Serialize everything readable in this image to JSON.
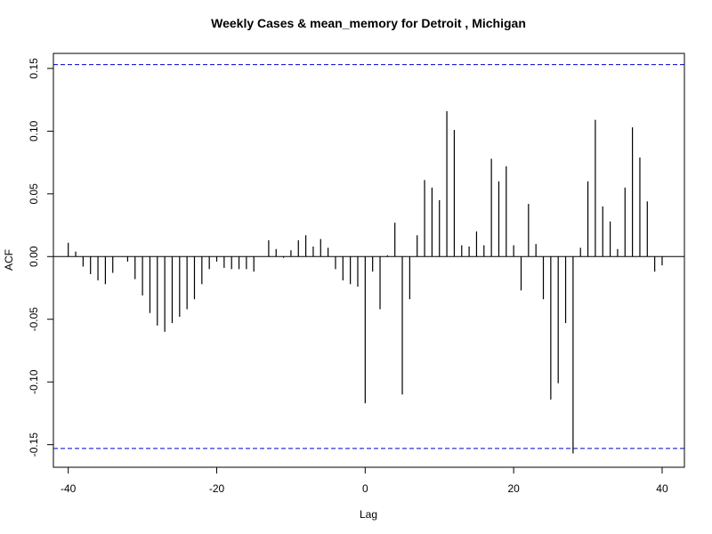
{
  "chart_data": {
    "type": "bar",
    "title": "Weekly Cases & mean_memory for Detroit , Michigan",
    "xlabel": "Lag",
    "ylabel": "ACF",
    "xlim": [
      -42,
      43
    ],
    "ylim": [
      -0.168,
      0.162
    ],
    "x_ticks": [
      -40,
      -20,
      0,
      20,
      40
    ],
    "y_ticks": [
      -0.15,
      -0.1,
      -0.05,
      0.0,
      0.05,
      0.1,
      0.15
    ],
    "y_tick_labels": [
      "-0.15",
      "-0.10",
      "-0.05",
      "0.00",
      "0.05",
      "0.10",
      "0.15"
    ],
    "confidence_limit": 0.153,
    "zero_line": true,
    "colors": {
      "bars": "#000000",
      "confidence": "#0000cc",
      "axes": "#000000"
    },
    "lags": [
      -40,
      -39,
      -38,
      -37,
      -36,
      -35,
      -34,
      -33,
      -32,
      -31,
      -30,
      -29,
      -28,
      -27,
      -26,
      -25,
      -24,
      -23,
      -22,
      -21,
      -20,
      -19,
      -18,
      -17,
      -16,
      -15,
      -14,
      -13,
      -12,
      -11,
      -10,
      -9,
      -8,
      -7,
      -6,
      -5,
      -4,
      -3,
      -2,
      -1,
      0,
      1,
      2,
      3,
      4,
      5,
      6,
      7,
      8,
      9,
      10,
      11,
      12,
      13,
      14,
      15,
      16,
      17,
      18,
      19,
      20,
      21,
      22,
      23,
      24,
      25,
      26,
      27,
      28,
      29,
      30,
      31,
      32,
      33,
      34,
      35,
      36,
      37,
      38,
      39,
      40
    ],
    "values": [
      0.011,
      0.004,
      -0.008,
      -0.014,
      -0.019,
      -0.022,
      -0.013,
      0.0,
      -0.004,
      -0.018,
      -0.031,
      -0.045,
      -0.055,
      -0.06,
      -0.053,
      -0.048,
      -0.042,
      -0.034,
      -0.022,
      -0.01,
      -0.004,
      -0.009,
      -0.01,
      -0.01,
      -0.01,
      -0.012,
      0.0,
      0.013,
      0.006,
      -0.001,
      0.005,
      0.013,
      0.017,
      0.008,
      0.014,
      0.007,
      -0.01,
      -0.019,
      -0.022,
      -0.024,
      -0.117,
      -0.012,
      -0.042,
      0.001,
      0.027,
      -0.11,
      -0.034,
      0.017,
      0.061,
      0.055,
      0.045,
      0.116,
      0.101,
      0.009,
      0.008,
      0.02,
      0.009,
      0.078,
      0.06,
      0.072,
      0.009,
      -0.027,
      0.042,
      0.01,
      -0.034,
      -0.114,
      -0.101,
      -0.053,
      -0.157,
      0.007,
      0.06,
      0.109,
      0.04,
      0.028,
      0.006,
      0.055,
      0.103,
      0.079,
      0.044,
      -0.012,
      -0.007
    ]
  }
}
